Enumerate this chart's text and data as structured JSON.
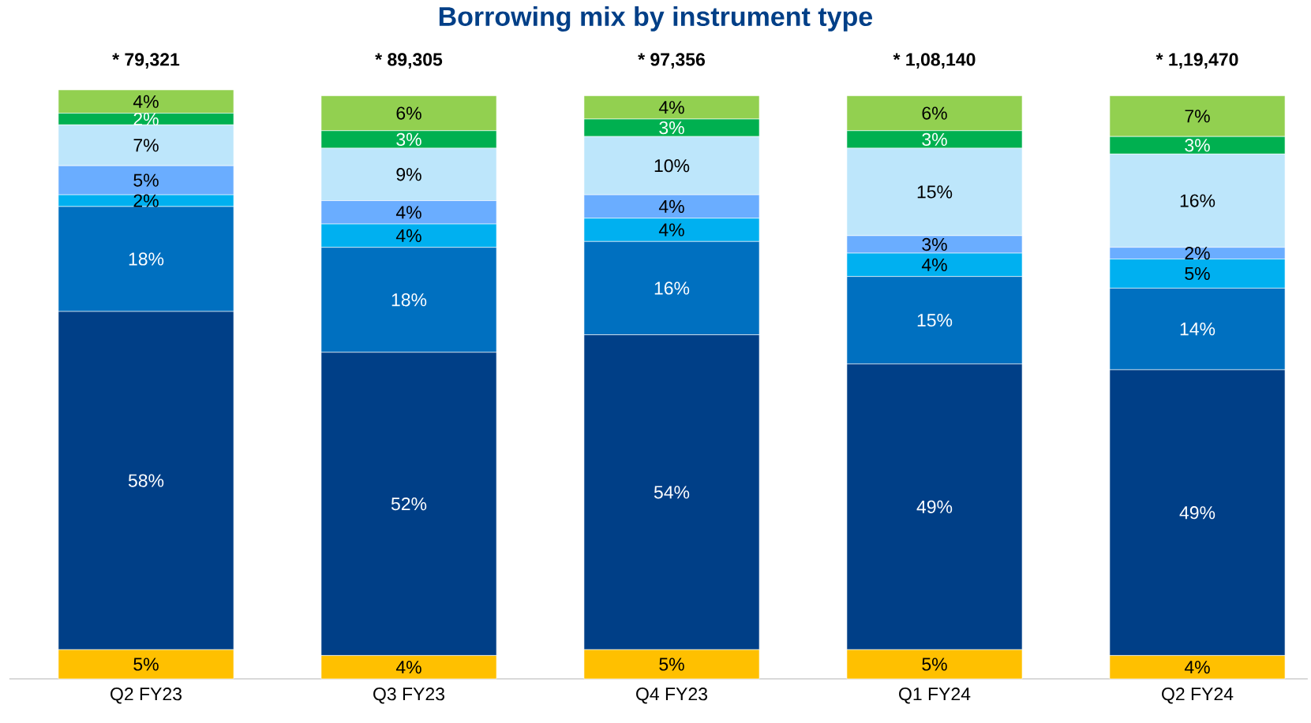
{
  "chart_data": {
    "type": "bar",
    "title": "Borrowing mix by instrument type",
    "stacked": true,
    "categories": [
      "Q2 FY23",
      "Q3 FY23",
      "Q4 FY23",
      "Q1 FY24",
      "Q2 FY24"
    ],
    "annotations": [
      "* 79,321",
      "* 89,305",
      "* 97,356",
      "* 1,08,140",
      "* 1,19,470"
    ],
    "series": [
      {
        "color": "#ffc000",
        "values": [
          5,
          4,
          5,
          5,
          4
        ],
        "value_labels": [
          "5%",
          "4%",
          "5%",
          "5%",
          "4%"
        ]
      },
      {
        "color": "#003f87",
        "values": [
          58,
          52,
          54,
          49,
          49
        ],
        "value_labels": [
          "58%",
          "52%",
          "54%",
          "49%",
          "49%"
        ]
      },
      {
        "color": "#0070c0",
        "values": [
          18,
          18,
          16,
          15,
          14
        ],
        "value_labels": [
          "18%",
          "18%",
          "16%",
          "15%",
          "14%"
        ]
      },
      {
        "color": "#00b0f0",
        "values": [
          2,
          4,
          4,
          4,
          5
        ],
        "value_labels": [
          "2%",
          "4%",
          "4%",
          "4%",
          "5%"
        ]
      },
      {
        "color": "#6aadff",
        "values": [
          5,
          4,
          4,
          3,
          2
        ],
        "value_labels": [
          "5%",
          "4%",
          "4%",
          "3%",
          "2%"
        ]
      },
      {
        "color": "#bde6fb",
        "values": [
          7,
          9,
          10,
          15,
          16
        ],
        "value_labels": [
          "7%",
          "9%",
          "10%",
          "15%",
          "16%"
        ]
      },
      {
        "color": "#00b050",
        "values": [
          2,
          3,
          3,
          3,
          3
        ],
        "value_labels": [
          "2%",
          "3%",
          "3%",
          "3%",
          "3%"
        ]
      },
      {
        "color": "#92d050",
        "values": [
          4,
          6,
          4,
          6,
          7
        ],
        "value_labels": [
          "4%",
          "6%",
          "4%",
          "6%",
          "7%"
        ]
      }
    ]
  }
}
